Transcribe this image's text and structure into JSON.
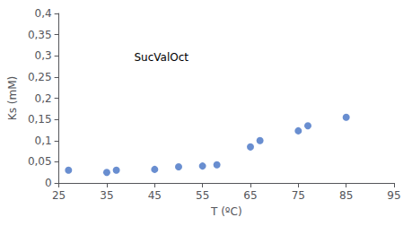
{
  "chart_data": {
    "type": "scatter",
    "xlabel": "T (ºC)",
    "ylabel": "Ks (mM)",
    "annotation": "SucValOct",
    "x": [
      27,
      35,
      37,
      45,
      50,
      55,
      58,
      65,
      67,
      75,
      77,
      85
    ],
    "values": [
      0.03,
      0.025,
      0.03,
      0.032,
      0.038,
      0.04,
      0.043,
      0.085,
      0.1,
      0.123,
      0.135,
      0.155
    ],
    "color": "#4472C4",
    "xlim": [
      25,
      95
    ],
    "ylim": [
      0,
      0.4
    ],
    "xticks": [
      25,
      35,
      45,
      55,
      65,
      75,
      85,
      95
    ],
    "yticks": [
      0,
      {
        "value": 0.05,
        "label": "0,05"
      },
      {
        "value": 0.1,
        "label": "0,1"
      },
      {
        "value": 0.15,
        "label": "0,15"
      },
      {
        "value": 0.2,
        "label": "0,2"
      },
      {
        "value": 0.25,
        "label": "0,25"
      },
      {
        "value": 0.3,
        "label": "0,3"
      },
      {
        "value": 0.35,
        "label": "0,35"
      },
      {
        "value": 0.4,
        "label": "0,4"
      }
    ],
    "grid": false
  }
}
